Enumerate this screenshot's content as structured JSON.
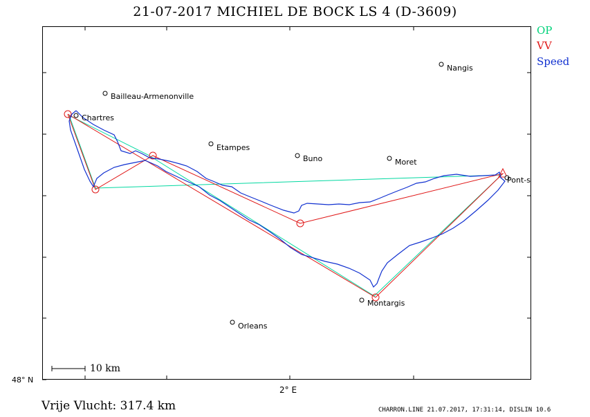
{
  "header": {
    "title": "21-07-2017   MICHIEL DE BOCK   LS 4 (D-3609)"
  },
  "legend": {
    "op": {
      "label": "OP",
      "color": "#00d27a"
    },
    "vv": {
      "label": "VV",
      "color": "#e01818"
    },
    "speed": {
      "label": "Speed",
      "color": "#1030d0"
    }
  },
  "axes": {
    "lat_label": "48° N",
    "lon_label": "2° E"
  },
  "scale_bar": {
    "label": "10 km"
  },
  "cities": [
    {
      "name": "Nangis"
    },
    {
      "name": "Bailleau-Armenonville"
    },
    {
      "name": "Chartres"
    },
    {
      "name": "Etampes"
    },
    {
      "name": "Buno"
    },
    {
      "name": "Moret"
    },
    {
      "name": "Pont-s"
    },
    {
      "name": "Montargis"
    },
    {
      "name": "Orleans"
    }
  ],
  "result": {
    "distance_text": "Vrije Vlucht:  317.4 km"
  },
  "footer": {
    "text": "CHARRON.LINE 21.07.2017, 17:31:14, DISLIN 10.6"
  }
}
